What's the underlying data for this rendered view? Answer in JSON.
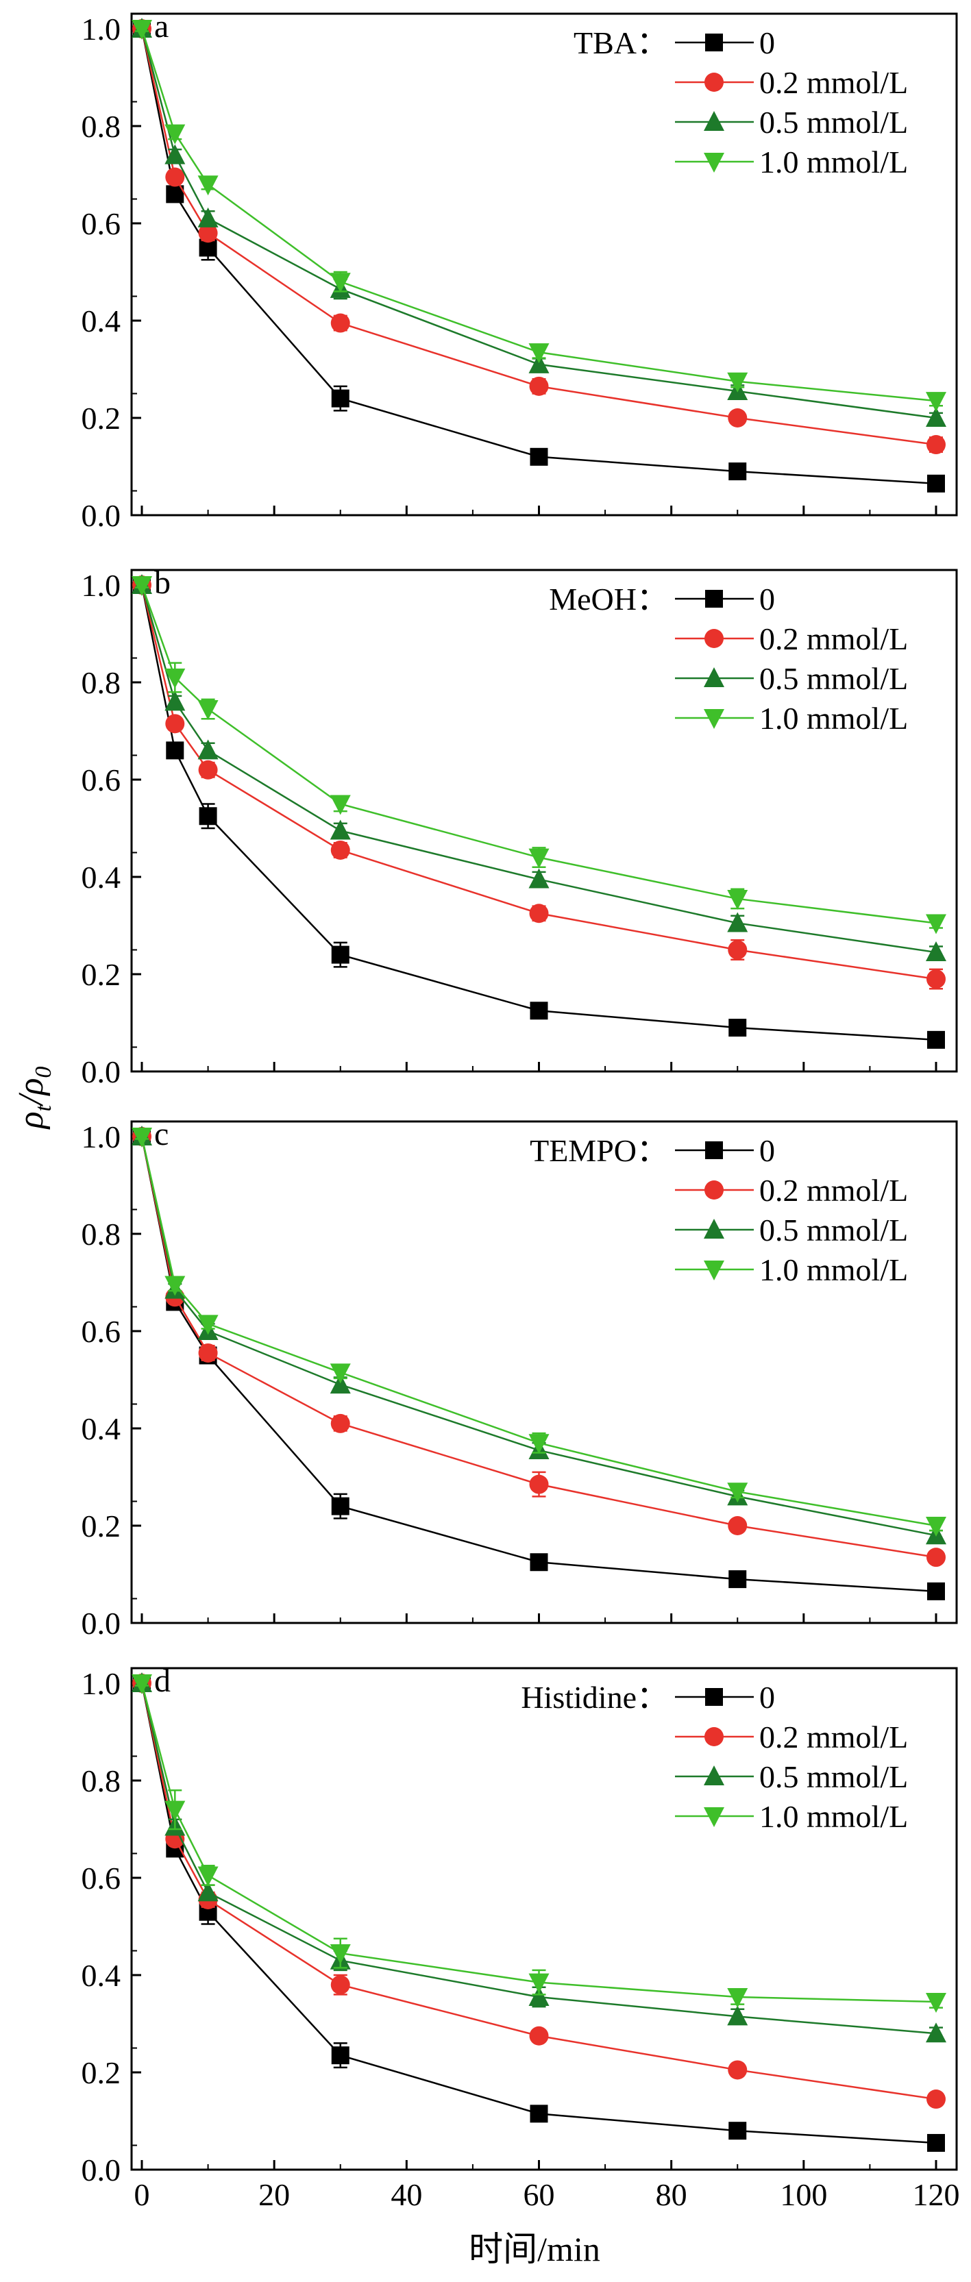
{
  "ylabel": {
    "rho": "ρ",
    "sub_t": "t",
    "slash": "/",
    "sub_0": "0"
  },
  "xlabel": "时间/min",
  "x_tick_labels": [
    "0",
    "20",
    "40",
    "60",
    "80",
    "100",
    "120"
  ],
  "y_tick_labels": [
    "0.0",
    "0.2",
    "0.4",
    "0.6",
    "0.8",
    "1.0"
  ],
  "colors": {
    "s0": "#000000",
    "s02": "#e8322b",
    "s05": "#1d7a2a",
    "s10": "#3fbf2a"
  },
  "chart_data": [
    {
      "type": "line",
      "panel": "a",
      "legend_title": "TBA：",
      "x": [
        0,
        5,
        10,
        30,
        60,
        90,
        120
      ],
      "xlabel": "时间/min",
      "ylabel": "ρt/ρ0",
      "xlim": [
        0,
        120
      ],
      "ylim": [
        0,
        1.0
      ],
      "legend": "top-right",
      "series": [
        {
          "name": "0",
          "marker": "square",
          "color": "#000000",
          "values": [
            1.0,
            0.66,
            0.55,
            0.24,
            0.12,
            0.09,
            0.065
          ],
          "err": [
            0.005,
            0.012,
            0.025,
            0.025,
            0.01,
            0.01,
            0.008
          ]
        },
        {
          "name": "0.2 mmol/L",
          "marker": "circle",
          "color": "#e8322b",
          "values": [
            1.0,
            0.695,
            0.58,
            0.395,
            0.265,
            0.2,
            0.145
          ],
          "err": [
            0.005,
            0.012,
            0.015,
            0.015,
            0.015,
            0.01,
            0.015
          ]
        },
        {
          "name": "0.5 mmol/L",
          "marker": "triangle-up",
          "color": "#1d7a2a",
          "values": [
            1.0,
            0.74,
            0.61,
            0.465,
            0.31,
            0.255,
            0.2
          ],
          "err": [
            0.005,
            0.012,
            0.015,
            0.02,
            0.012,
            0.012,
            0.01
          ]
        },
        {
          "name": "1.0 mmol/L",
          "marker": "triangle-down",
          "color": "#3fbf2a",
          "values": [
            1.0,
            0.785,
            0.68,
            0.48,
            0.335,
            0.275,
            0.235
          ],
          "err": [
            0.005,
            0.012,
            0.01,
            0.02,
            0.012,
            0.012,
            0.01
          ]
        }
      ]
    },
    {
      "type": "line",
      "panel": "b",
      "legend_title": "MeOH：",
      "x": [
        0,
        5,
        10,
        30,
        60,
        90,
        120
      ],
      "xlabel": "时间/min",
      "ylabel": "ρt/ρ0",
      "xlim": [
        0,
        120
      ],
      "ylim": [
        0,
        1.0
      ],
      "legend": "top-right",
      "series": [
        {
          "name": "0",
          "marker": "square",
          "color": "#000000",
          "values": [
            1.0,
            0.66,
            0.525,
            0.24,
            0.125,
            0.09,
            0.065
          ],
          "err": [
            0.005,
            0.012,
            0.025,
            0.025,
            0.01,
            0.01,
            0.008
          ]
        },
        {
          "name": "0.2 mmol/L",
          "marker": "circle",
          "color": "#e8322b",
          "values": [
            1.0,
            0.715,
            0.62,
            0.455,
            0.325,
            0.25,
            0.19
          ],
          "err": [
            0.005,
            0.012,
            0.015,
            0.015,
            0.015,
            0.02,
            0.02
          ]
        },
        {
          "name": "0.5 mmol/L",
          "marker": "triangle-up",
          "color": "#1d7a2a",
          "values": [
            1.0,
            0.76,
            0.66,
            0.495,
            0.395,
            0.305,
            0.245
          ],
          "err": [
            0.005,
            0.012,
            0.015,
            0.015,
            0.015,
            0.015,
            0.012
          ]
        },
        {
          "name": "1.0 mmol/L",
          "marker": "triangle-down",
          "color": "#3fbf2a",
          "values": [
            1.0,
            0.81,
            0.745,
            0.55,
            0.44,
            0.355,
            0.305
          ],
          "err": [
            0.005,
            0.03,
            0.02,
            0.015,
            0.02,
            0.02,
            0.01
          ]
        }
      ]
    },
    {
      "type": "line",
      "panel": "c",
      "legend_title": "TEMPO：",
      "x": [
        0,
        5,
        10,
        30,
        60,
        90,
        120
      ],
      "xlabel": "时间/min",
      "ylabel": "ρt/ρ0",
      "xlim": [
        0,
        120
      ],
      "ylim": [
        0,
        1.0
      ],
      "legend": "top-right",
      "series": [
        {
          "name": "0",
          "marker": "square",
          "color": "#000000",
          "values": [
            1.0,
            0.66,
            0.55,
            0.24,
            0.125,
            0.09,
            0.065
          ],
          "err": [
            0.005,
            0.012,
            0.015,
            0.025,
            0.01,
            0.01,
            0.008
          ]
        },
        {
          "name": "0.2 mmol/L",
          "marker": "circle",
          "color": "#e8322b",
          "values": [
            1.0,
            0.67,
            0.555,
            0.41,
            0.285,
            0.2,
            0.135
          ],
          "err": [
            0.005,
            0.012,
            0.015,
            0.015,
            0.025,
            0.012,
            0.01
          ]
        },
        {
          "name": "0.5 mmol/L",
          "marker": "triangle-up",
          "color": "#1d7a2a",
          "values": [
            1.0,
            0.685,
            0.6,
            0.49,
            0.355,
            0.26,
            0.18
          ],
          "err": [
            0.005,
            0.012,
            0.015,
            0.015,
            0.015,
            0.012,
            0.01
          ]
        },
        {
          "name": "1.0 mmol/L",
          "marker": "triangle-down",
          "color": "#3fbf2a",
          "values": [
            1.0,
            0.695,
            0.615,
            0.515,
            0.37,
            0.27,
            0.2
          ],
          "err": [
            0.005,
            0.012,
            0.01,
            0.012,
            0.02,
            0.012,
            0.01
          ]
        }
      ]
    },
    {
      "type": "line",
      "panel": "d",
      "legend_title": "Histidine：",
      "x": [
        0,
        5,
        10,
        30,
        60,
        90,
        120
      ],
      "xlabel": "时间/min",
      "ylabel": "ρt/ρ0",
      "xlim": [
        0,
        120
      ],
      "ylim": [
        0,
        1.0
      ],
      "legend": "top-right",
      "series": [
        {
          "name": "0",
          "marker": "square",
          "color": "#000000",
          "values": [
            1.0,
            0.66,
            0.53,
            0.235,
            0.115,
            0.08,
            0.055
          ],
          "err": [
            0.005,
            0.012,
            0.025,
            0.025,
            0.01,
            0.01,
            0.008
          ]
        },
        {
          "name": "0.2 mmol/L",
          "marker": "circle",
          "color": "#e8322b",
          "values": [
            1.0,
            0.68,
            0.555,
            0.38,
            0.275,
            0.205,
            0.145
          ],
          "err": [
            0.005,
            0.012,
            0.015,
            0.02,
            0.012,
            0.012,
            0.01
          ]
        },
        {
          "name": "0.5 mmol/L",
          "marker": "triangle-up",
          "color": "#1d7a2a",
          "values": [
            1.0,
            0.705,
            0.57,
            0.43,
            0.355,
            0.315,
            0.28
          ],
          "err": [
            0.005,
            0.015,
            0.015,
            0.02,
            0.02,
            0.015,
            0.012
          ]
        },
        {
          "name": "1.0 mmol/L",
          "marker": "triangle-down",
          "color": "#3fbf2a",
          "values": [
            1.0,
            0.74,
            0.605,
            0.445,
            0.385,
            0.355,
            0.345
          ],
          "err": [
            0.005,
            0.04,
            0.02,
            0.03,
            0.025,
            0.015,
            0.012
          ]
        }
      ]
    }
  ]
}
